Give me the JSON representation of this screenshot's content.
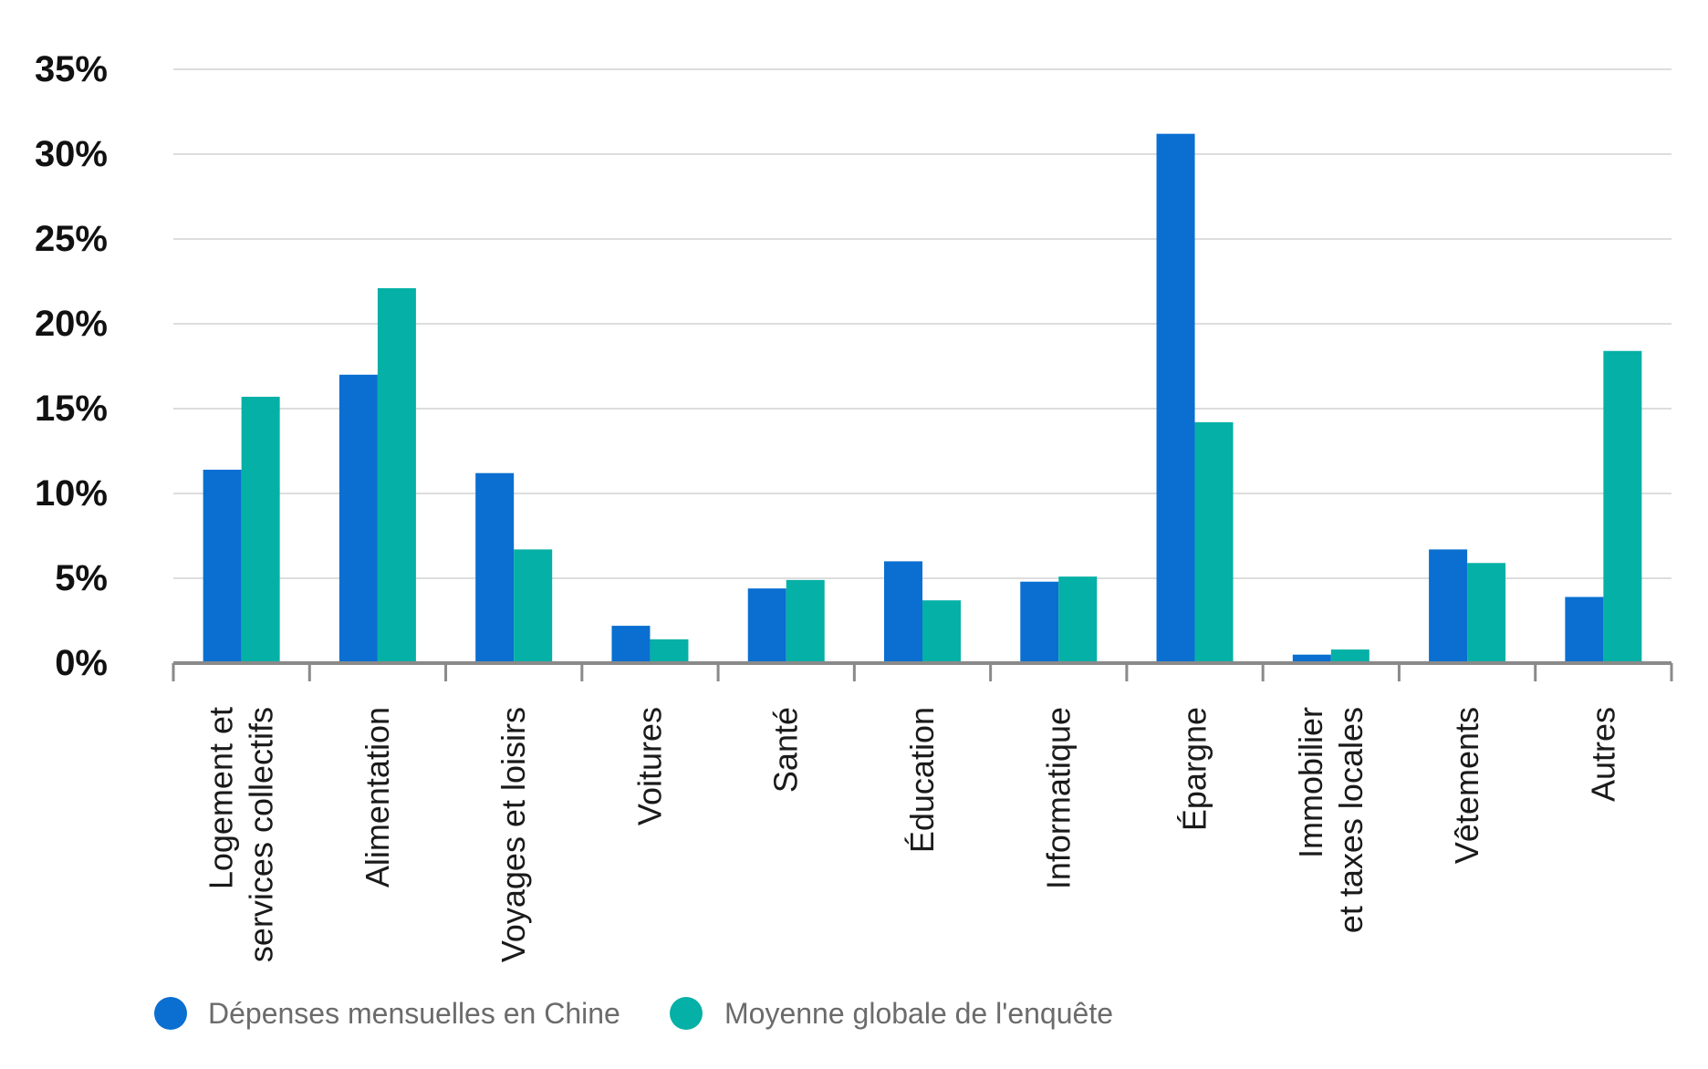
{
  "chart_data": {
    "type": "bar",
    "title": "",
    "xlabel": "",
    "ylabel": "",
    "ylim": [
      0,
      35
    ],
    "yticks": [
      0,
      5,
      10,
      15,
      20,
      25,
      30,
      35
    ],
    "ytick_labels": [
      "0%",
      "5%",
      "10%",
      "15%",
      "20%",
      "25%",
      "30%",
      "35%"
    ],
    "grid": true,
    "legend_position": "bottom-left",
    "categories": [
      "Logement et\nservices collectifs",
      "Alimentation",
      "Voyages et loisirs",
      "Voitures",
      "Santé",
      "Éducation",
      "Informatique",
      "Épargne",
      "Immobilier\net taxes locales",
      "Vêtements",
      "Autres"
    ],
    "series": [
      {
        "name": "Dépenses mensuelles en Chine",
        "color": "#0a6fd1",
        "values": [
          11.4,
          17.0,
          11.2,
          2.2,
          4.4,
          6.0,
          4.8,
          31.2,
          0.5,
          6.7,
          3.9
        ]
      },
      {
        "name": "Moyenne globale de l'enquête",
        "color": "#05b0a6",
        "values": [
          15.7,
          22.1,
          6.7,
          1.4,
          4.9,
          3.7,
          5.1,
          14.2,
          0.8,
          5.9,
          18.4
        ]
      }
    ]
  }
}
